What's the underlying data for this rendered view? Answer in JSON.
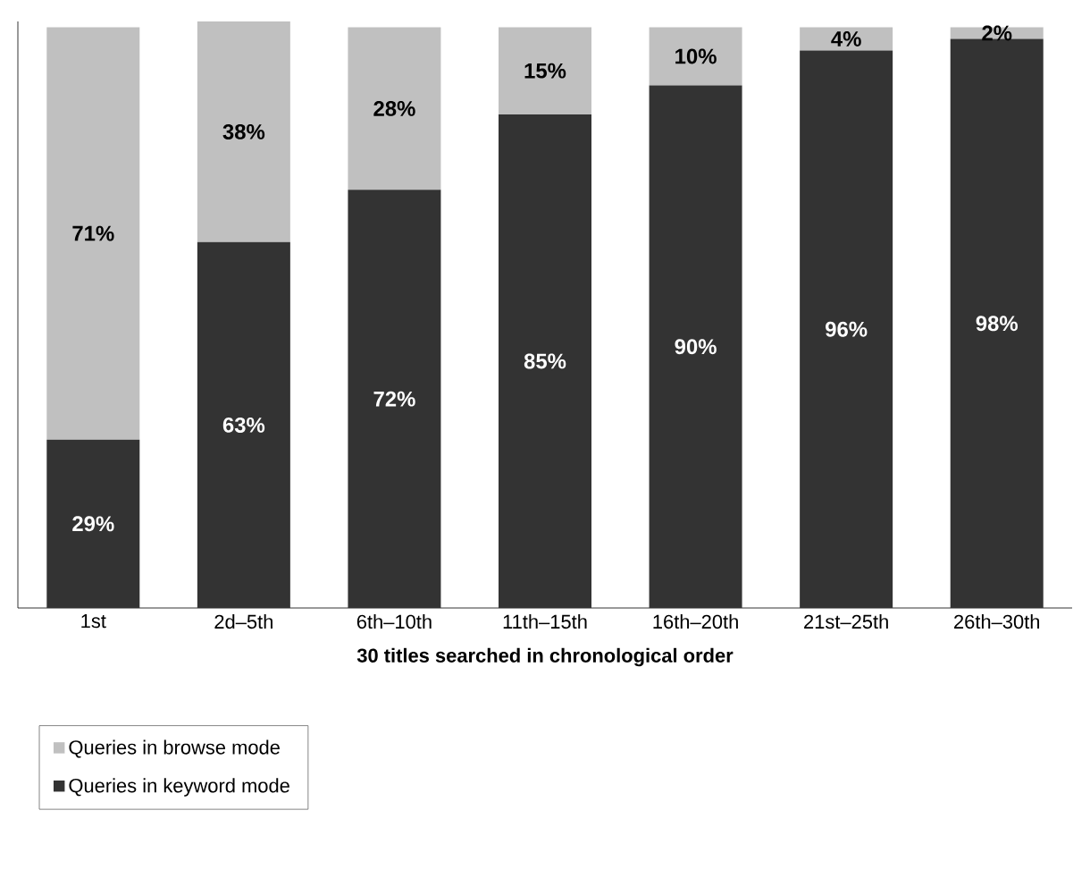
{
  "chart_data": {
    "type": "bar",
    "stacked": true,
    "xlabel": "30 titles searched in chronological order",
    "categories": [
      "1st",
      "2d–5th",
      "6th–10th",
      "11th–15th",
      "16th–20th",
      "21st–25th",
      "26th–30th"
    ],
    "tick_labels": "x",
    "legend": "bottom left",
    "series": [
      {
        "name": "Queries in keyword mode",
        "color": "#333333",
        "values": [
          29,
          63,
          72,
          85,
          90,
          96,
          98
        ],
        "value_labels": [
          "29%",
          "63%",
          "72%",
          "85%",
          "90%",
          "96%",
          "98%"
        ]
      },
      {
        "name": "Queries in browse mode",
        "color": "#c0c0c0",
        "values": [
          71,
          38,
          28,
          15,
          10,
          4,
          2
        ],
        "value_labels": [
          "71%",
          "38%",
          "28%",
          "15%",
          "10%",
          "4%",
          "2%"
        ]
      }
    ]
  }
}
